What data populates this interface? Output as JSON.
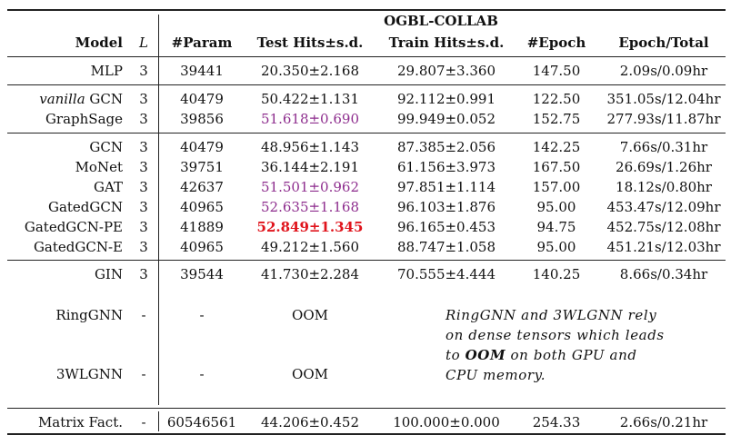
{
  "dataset": "OGBL-COLLAB",
  "headers": {
    "model": "Model",
    "L": "L",
    "param": "#Param",
    "test": "Test Hits±s.d.",
    "train": "Train Hits±s.d.",
    "epoch": "#Epoch",
    "time": "Epoch/Total"
  },
  "groups": [
    {
      "rows": [
        {
          "model": "MLP",
          "L": "3",
          "param": "39441",
          "test": "20.350±2.168",
          "train": "29.807±3.360",
          "epoch": "147.50",
          "time": "2.09s/0.09hr"
        }
      ]
    },
    {
      "rows": [
        {
          "model_italic": "vanilla",
          "model": "GCN",
          "L": "3",
          "param": "40479",
          "test": "50.422±1.131",
          "train": "92.112±0.991",
          "epoch": "122.50",
          "time": "351.05s/12.04hr"
        },
        {
          "model": "GraphSage",
          "L": "3",
          "param": "39856",
          "test": "51.618±0.690",
          "test_style": "purple",
          "train": "99.949±0.052",
          "epoch": "152.75",
          "time": "277.93s/11.87hr"
        }
      ]
    },
    {
      "rows": [
        {
          "model": "GCN",
          "L": "3",
          "param": "40479",
          "test": "48.956±1.143",
          "train": "87.385±2.056",
          "epoch": "142.25",
          "time": "7.66s/0.31hr"
        },
        {
          "model": "MoNet",
          "L": "3",
          "param": "39751",
          "test": "36.144±2.191",
          "train": "61.156±3.973",
          "epoch": "167.50",
          "time": "26.69s/1.26hr"
        },
        {
          "model": "GAT",
          "L": "3",
          "param": "42637",
          "test": "51.501±0.962",
          "test_style": "purple",
          "train": "97.851±1.114",
          "epoch": "157.00",
          "time": "18.12s/0.80hr"
        },
        {
          "model": "GatedGCN",
          "L": "3",
          "param": "40965",
          "test": "52.635±1.168",
          "test_style": "purple",
          "train": "96.103±1.876",
          "epoch": "95.00",
          "time": "453.47s/12.09hr"
        },
        {
          "model": "GatedGCN-PE",
          "L": "3",
          "param": "41889",
          "test": "52.849±1.345",
          "test_style": "best",
          "train": "96.165±0.453",
          "epoch": "94.75",
          "time": "452.75s/12.08hr"
        },
        {
          "model": "GatedGCN-E",
          "L": "3",
          "param": "40965",
          "test": "49.212±1.560",
          "train": "88.747±1.058",
          "epoch": "95.00",
          "time": "451.21s/12.03hr"
        }
      ]
    },
    {
      "rows": [
        {
          "model": "GIN",
          "L": "3",
          "param": "39544",
          "test": "41.730±2.284",
          "train": "70.555±4.444",
          "epoch": "140.25",
          "time": "8.66s/0.34hr"
        },
        {
          "model": "RingGNN",
          "L": "-",
          "param": "-",
          "test": "OOM"
        },
        {
          "model": "3WLGNN",
          "L": "-",
          "param": "-",
          "test": "OOM"
        }
      ]
    },
    {
      "rows": [
        {
          "model": "Matrix Fact.",
          "L": "-",
          "param": "60546561",
          "test": "44.206±0.452",
          "train": "100.000±0.000",
          "epoch": "254.33",
          "time": "2.66s/0.21hr"
        }
      ]
    }
  ],
  "note": {
    "line1": "RingGNN and 3WLGNN rely",
    "line2": "on dense tensors which leads",
    "line3_pre": "to ",
    "line3_bold": "OOM",
    "line3_post": " on both GPU and",
    "line4": "CPU memory."
  }
}
